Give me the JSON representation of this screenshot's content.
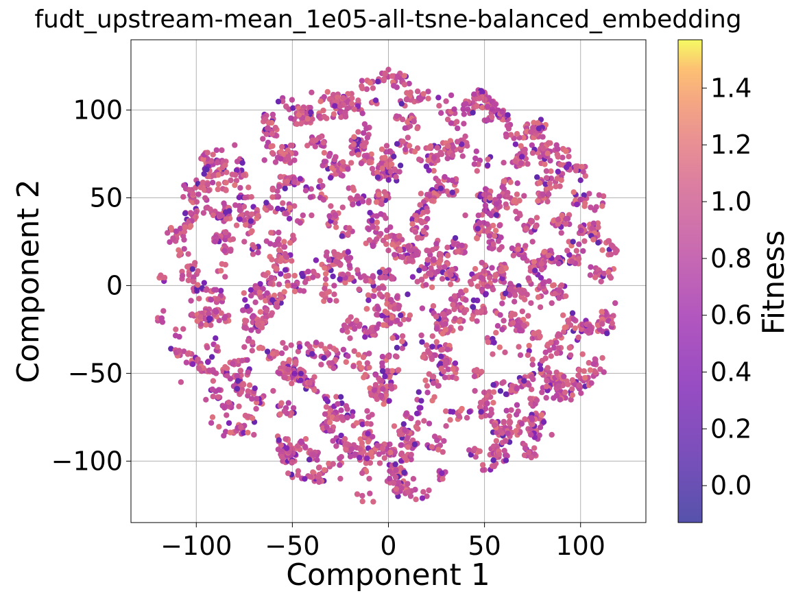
{
  "chart_data": {
    "type": "scatter",
    "title": "fudt_upstream-mean_1e05-all-tsne-balanced_embedding",
    "xlabel": "Component 1",
    "ylabel": "Component 2",
    "xlim": [
      -134,
      134
    ],
    "ylim": [
      -135,
      140
    ],
    "xticks": [
      -100,
      -50,
      0,
      50,
      100
    ],
    "yticks": [
      -100,
      -50,
      0,
      50,
      100
    ],
    "xtick_labels": [
      "−100",
      "−50",
      "0",
      "50",
      "100"
    ],
    "ytick_labels": [
      "−100",
      "−50",
      "0",
      "50",
      "100"
    ],
    "grid": true,
    "colormap": "plasma",
    "colorbar": {
      "label": "Fitness",
      "range": [
        -0.13,
        1.57
      ],
      "ticks": [
        0.0,
        0.2,
        0.4,
        0.6,
        0.8,
        1.0,
        1.2,
        1.4
      ],
      "tick_labels": [
        "0.0",
        "0.2",
        "0.4",
        "0.6",
        "0.8",
        "1.0",
        "1.2",
        "1.4"
      ]
    },
    "point_alpha": 0.7,
    "series": [
      {
        "points_note": "t-SNE embedding, roughly circular cloud of radius ~120 centered at origin",
        "points": [
          [
            0,
            123,
            0.95
          ],
          [
            -120,
            -20,
            0.9
          ],
          [
            118,
            -10,
            0.85
          ],
          [
            -95,
            -65,
            0.9
          ],
          [
            100,
            60,
            0.3
          ],
          [
            -80,
            80,
            0.9
          ],
          [
            80,
            80,
            0.95
          ],
          [
            -60,
            95,
            0.9
          ],
          [
            30,
            105,
            0.95
          ],
          [
            -40,
            110,
            0.9
          ],
          [
            -25,
            -110,
            0.95
          ],
          [
            20,
            -120,
            0.9
          ],
          [
            50,
            -105,
            0.95
          ],
          [
            -55,
            -100,
            0.9
          ],
          [
            85,
            -85,
            0.95
          ],
          [
            108,
            -45,
            0.95
          ],
          [
            -108,
            -55,
            0.95
          ],
          [
            110,
            25,
            0.9
          ],
          [
            -115,
            30,
            0.9
          ],
          [
            -100,
            60,
            0.9
          ],
          [
            95,
            -65,
            0.9
          ],
          [
            -45,
            -90,
            0.2
          ],
          [
            -10,
            -110,
            0.95
          ],
          [
            60,
            -100,
            0.9
          ],
          [
            -70,
            -85,
            0.95
          ],
          [
            5,
            -120,
            0.2
          ],
          [
            -20,
            -95,
            0.2
          ],
          [
            70,
            -90,
            0.9
          ],
          [
            -90,
            -30,
            0.3
          ],
          [
            90,
            30,
            0.9
          ],
          [
            -85,
            45,
            0.85
          ],
          [
            60,
            70,
            0.9
          ],
          [
            -60,
            75,
            0.9
          ],
          [
            40,
            85,
            0.95
          ],
          [
            -35,
            80,
            0.9
          ],
          [
            10,
            90,
            0.95
          ],
          [
            -10,
            90,
            0.9
          ],
          [
            15,
            -90,
            0.9
          ],
          [
            -30,
            -70,
            0.9
          ],
          [
            30,
            -80,
            0.95
          ],
          [
            -60,
            -60,
            0.95
          ],
          [
            60,
            -55,
            0.95
          ],
          [
            -75,
            -35,
            0.95
          ],
          [
            75,
            -30,
            0.9
          ],
          [
            -75,
            25,
            0.95
          ],
          [
            75,
            25,
            0.9
          ],
          [
            -40,
            40,
            0.95
          ],
          [
            40,
            40,
            0.95
          ],
          [
            0,
            50,
            0.95
          ],
          [
            0,
            -50,
            0.95
          ],
          [
            -50,
            0,
            0.9
          ],
          [
            50,
            0,
            0.95
          ],
          [
            10,
            -5,
            0.2
          ],
          [
            -20,
            10,
            0.9
          ],
          [
            20,
            20,
            0.95
          ],
          [
            -20,
            -30,
            0.95
          ],
          [
            25,
            -35,
            0.95
          ],
          [
            -60,
            30,
            0.9
          ],
          [
            60,
            -20,
            0.9
          ],
          [
            0,
            20,
            0.95
          ],
          [
            0,
            -20,
            0.9
          ],
          [
            -35,
            -45,
            0.95
          ],
          [
            35,
            60,
            0.95
          ],
          [
            -45,
            60,
            0.95
          ],
          [
            45,
            -60,
            0.9
          ],
          [
            -10,
            70,
            0.95
          ],
          [
            15,
            -65,
            0.95
          ],
          [
            85,
            -10,
            0.9
          ],
          [
            -85,
            5,
            0.95
          ],
          [
            95,
            -35,
            0.9
          ]
        ]
      }
    ]
  }
}
